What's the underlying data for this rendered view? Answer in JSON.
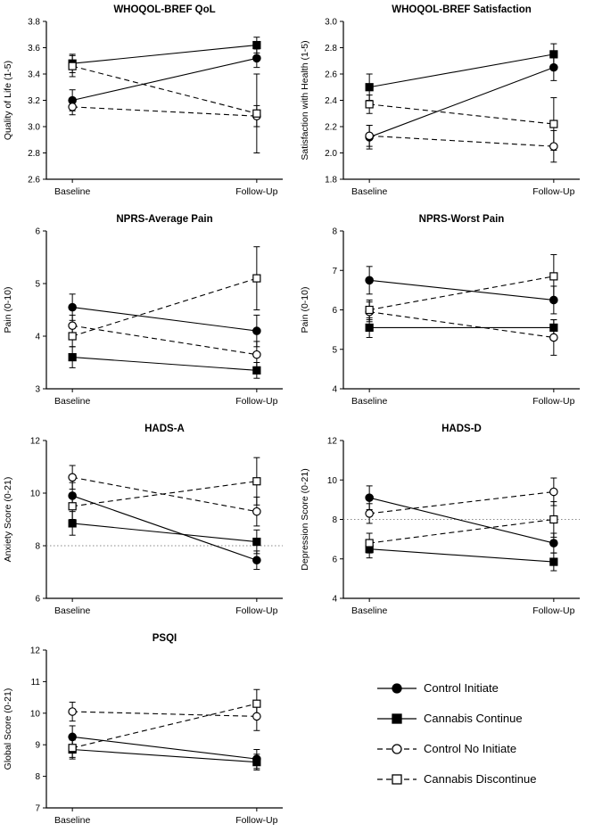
{
  "legend": {
    "items": [
      {
        "label": "Control Initiate",
        "marker": "circle",
        "fill": "filled",
        "line": "solid"
      },
      {
        "label": "Cannabis Continue",
        "marker": "square",
        "fill": "filled",
        "line": "solid"
      },
      {
        "label": "Control No Initiate",
        "marker": "circle",
        "fill": "open",
        "line": "dashed"
      },
      {
        "label": "Cannabis Discontinue",
        "marker": "square",
        "fill": "open",
        "line": "dashed"
      }
    ]
  },
  "chart_data": [
    {
      "type": "line",
      "title": "WHOQOL-BREF QoL",
      "ylabel": "Quality of Life (1-5)",
      "categories": [
        "Baseline",
        "Follow-Up"
      ],
      "ylim": [
        2.6,
        3.8
      ],
      "ytick": 0.2,
      "ydecimals": 1,
      "series": [
        {
          "name": "Control Initiate",
          "values": [
            3.2,
            3.52
          ],
          "err": [
            0.08,
            0.07
          ]
        },
        {
          "name": "Cannabis Continue",
          "values": [
            3.48,
            3.62
          ],
          "err": [
            0.07,
            0.06
          ]
        },
        {
          "name": "Control No Initiate",
          "values": [
            3.15,
            3.08
          ],
          "err": [
            0.06,
            0.08
          ]
        },
        {
          "name": "Cannabis Discontinue",
          "values": [
            3.46,
            3.1
          ],
          "err": [
            0.08,
            0.3
          ]
        }
      ]
    },
    {
      "type": "line",
      "title": "WHOQOL-BREF Satisfaction",
      "ylabel": "Satisfaction with Health (1-5)",
      "categories": [
        "Baseline",
        "Follow-Up"
      ],
      "ylim": [
        1.8,
        3.0
      ],
      "ytick": 0.2,
      "ydecimals": 1,
      "series": [
        {
          "name": "Control Initiate",
          "values": [
            2.12,
            2.65
          ],
          "err": [
            0.09,
            0.1
          ]
        },
        {
          "name": "Cannabis Continue",
          "values": [
            2.5,
            2.75
          ],
          "err": [
            0.1,
            0.08
          ]
        },
        {
          "name": "Control No Initiate",
          "values": [
            2.13,
            2.05
          ],
          "err": [
            0.08,
            0.12
          ]
        },
        {
          "name": "Cannabis Discontinue",
          "values": [
            2.37,
            2.22
          ],
          "err": [
            0.07,
            0.2
          ]
        }
      ]
    },
    {
      "type": "line",
      "title": "NPRS-Average Pain",
      "ylabel": "Pain (0-10)",
      "categories": [
        "Baseline",
        "Follow-Up"
      ],
      "ylim": [
        3,
        6
      ],
      "ytick": 1,
      "ydecimals": 0,
      "series": [
        {
          "name": "Control Initiate",
          "values": [
            4.55,
            4.1
          ],
          "err": [
            0.25,
            0.3
          ]
        },
        {
          "name": "Cannabis Continue",
          "values": [
            3.6,
            3.35
          ],
          "err": [
            0.2,
            0.15
          ]
        },
        {
          "name": "Control No Initiate",
          "values": [
            4.2,
            3.65
          ],
          "err": [
            0.2,
            0.25
          ]
        },
        {
          "name": "Cannabis Discontinue",
          "values": [
            4.0,
            5.1
          ],
          "err": [
            0.2,
            0.6
          ]
        }
      ]
    },
    {
      "type": "line",
      "title": "NPRS-Worst Pain",
      "ylabel": "Pain (0-10)",
      "categories": [
        "Baseline",
        "Follow-Up"
      ],
      "ylim": [
        4,
        8
      ],
      "ytick": 1,
      "ydecimals": 0,
      "series": [
        {
          "name": "Control Initiate",
          "values": [
            6.75,
            6.25
          ],
          "err": [
            0.35,
            0.35
          ]
        },
        {
          "name": "Cannabis Continue",
          "values": [
            5.55,
            5.55
          ],
          "err": [
            0.25,
            0.2
          ]
        },
        {
          "name": "Control No Initiate",
          "values": [
            5.95,
            5.3
          ],
          "err": [
            0.25,
            0.45
          ]
        },
        {
          "name": "Cannabis Discontinue",
          "values": [
            6.0,
            6.85
          ],
          "err": [
            0.25,
            0.55
          ]
        }
      ]
    },
    {
      "type": "line",
      "title": "HADS-A",
      "ylabel": "Anxiety Score (0-21)",
      "categories": [
        "Baseline",
        "Follow-Up"
      ],
      "ylim": [
        6,
        12
      ],
      "ytick": 2,
      "ydecimals": 0,
      "refline": 8,
      "series": [
        {
          "name": "Control Initiate",
          "values": [
            9.9,
            7.45
          ],
          "err": [
            0.5,
            0.35
          ]
        },
        {
          "name": "Cannabis Continue",
          "values": [
            8.85,
            8.15
          ],
          "err": [
            0.45,
            0.45
          ]
        },
        {
          "name": "Control No Initiate",
          "values": [
            10.6,
            9.3
          ],
          "err": [
            0.45,
            0.55
          ]
        },
        {
          "name": "Cannabis Discontinue",
          "values": [
            9.5,
            10.45
          ],
          "err": [
            0.5,
            0.9
          ]
        }
      ]
    },
    {
      "type": "line",
      "title": "HADS-D",
      "ylabel": "Depression Score (0-21)",
      "categories": [
        "Baseline",
        "Follow-Up"
      ],
      "ylim": [
        4,
        12
      ],
      "ytick": 2,
      "ydecimals": 0,
      "refline": 8,
      "series": [
        {
          "name": "Control Initiate",
          "values": [
            9.1,
            6.8
          ],
          "err": [
            0.6,
            0.5
          ]
        },
        {
          "name": "Cannabis Continue",
          "values": [
            6.5,
            5.85
          ],
          "err": [
            0.45,
            0.45
          ]
        },
        {
          "name": "Control No Initiate",
          "values": [
            8.3,
            9.4
          ],
          "err": [
            0.5,
            0.7
          ]
        },
        {
          "name": "Cannabis Discontinue",
          "values": [
            6.8,
            8.0
          ],
          "err": [
            0.5,
            0.9
          ]
        }
      ]
    },
    {
      "type": "line",
      "title": "PSQI",
      "ylabel": "Global Score (0-21)",
      "categories": [
        "Baseline",
        "Follow-Up"
      ],
      "ylim": [
        7,
        12
      ],
      "ytick": 1,
      "ydecimals": 0,
      "series": [
        {
          "name": "Control Initiate",
          "values": [
            9.25,
            8.55
          ],
          "err": [
            0.35,
            0.3
          ]
        },
        {
          "name": "Cannabis Continue",
          "values": [
            8.85,
            8.45
          ],
          "err": [
            0.3,
            0.25
          ]
        },
        {
          "name": "Control No Initiate",
          "values": [
            10.05,
            9.9
          ],
          "err": [
            0.3,
            0.45
          ]
        },
        {
          "name": "Cannabis Discontinue",
          "values": [
            8.9,
            10.3
          ],
          "err": [
            0.3,
            0.45
          ]
        }
      ]
    }
  ]
}
